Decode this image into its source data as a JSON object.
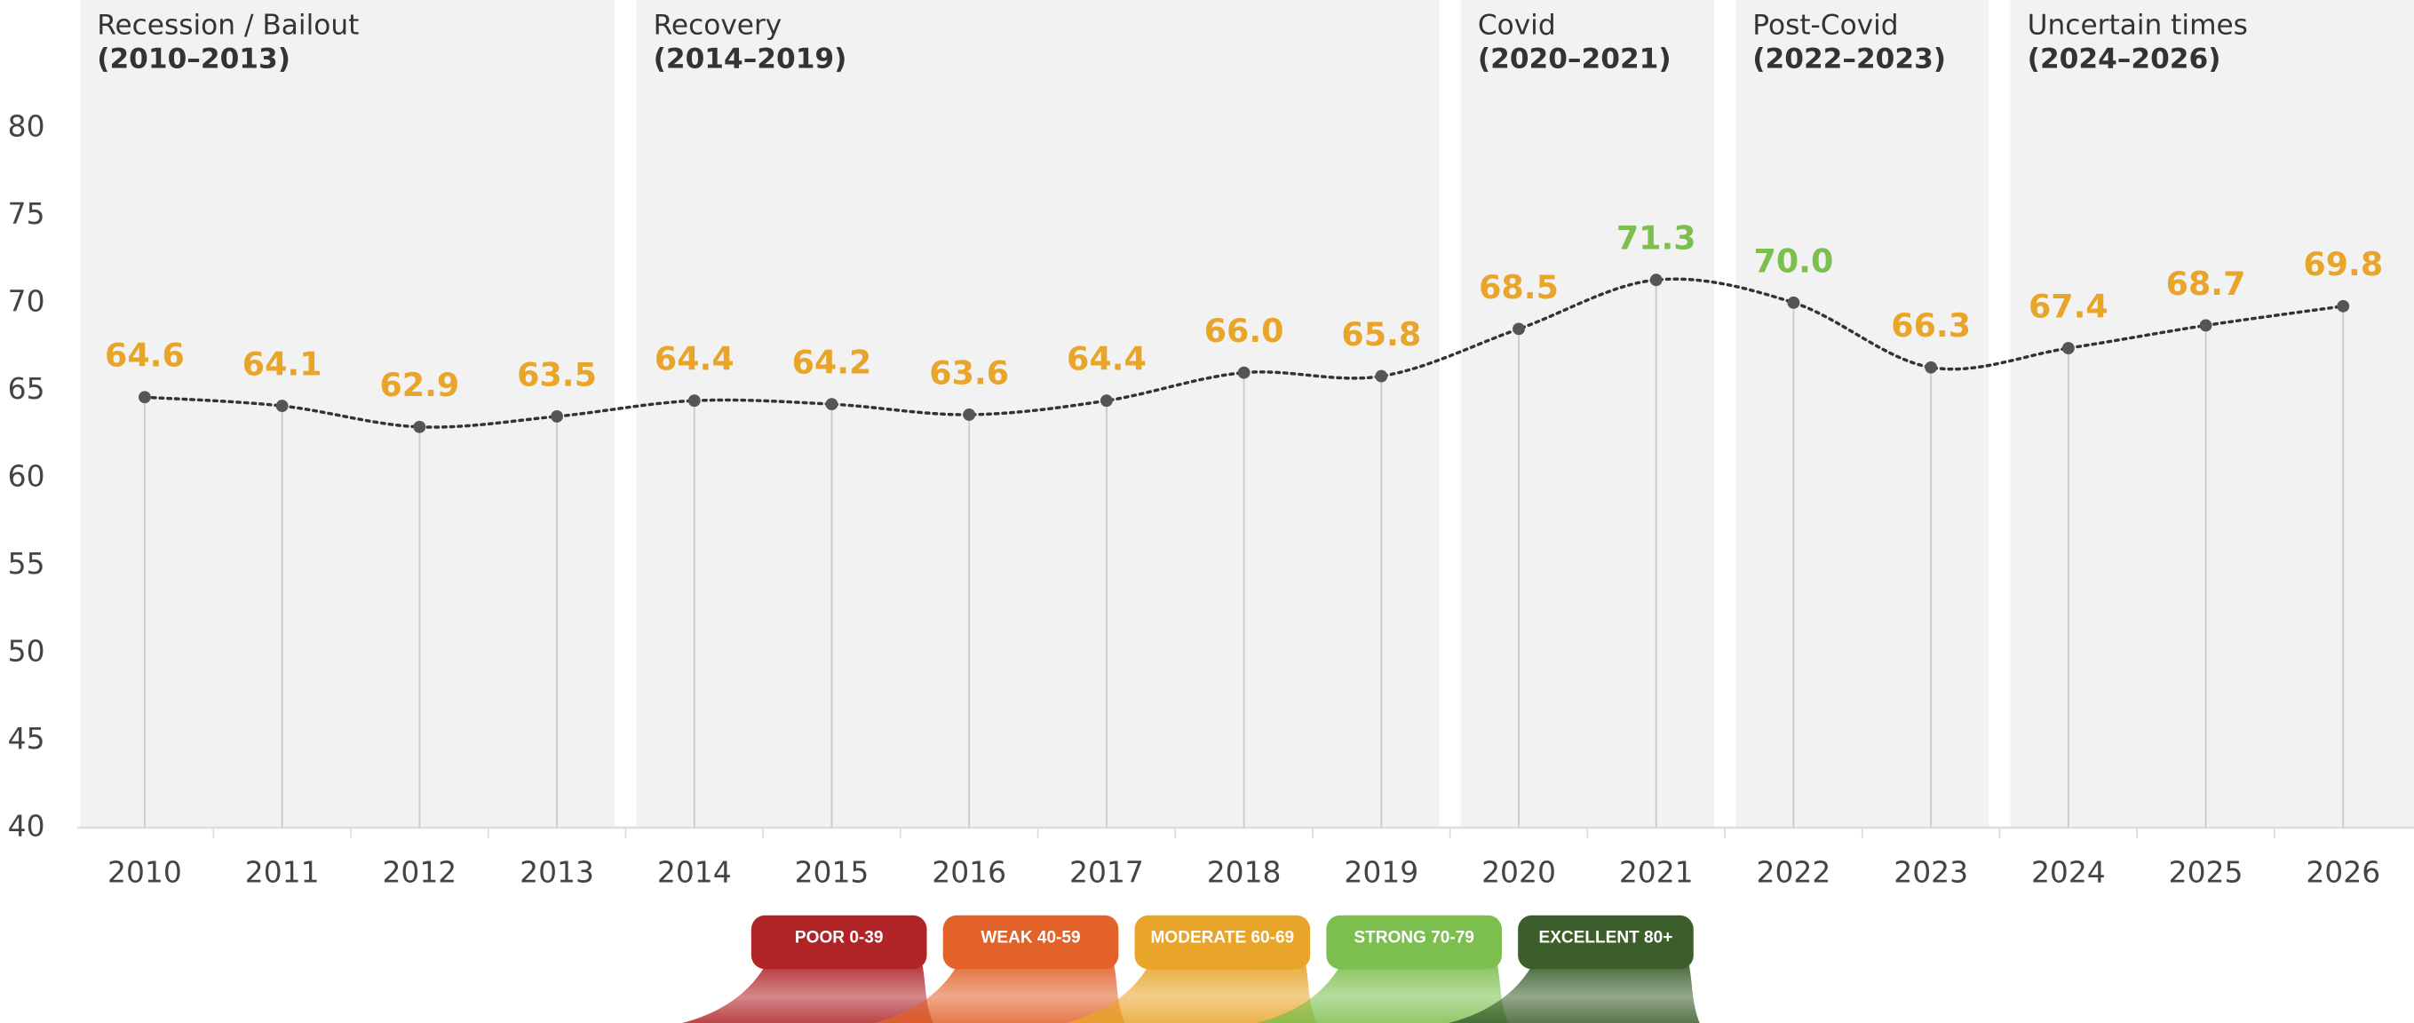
{
  "chart_data": {
    "type": "line",
    "categories": [
      "2010",
      "2011",
      "2012",
      "2013",
      "2014",
      "2015",
      "2016",
      "2017",
      "2018",
      "2019",
      "2020",
      "2021",
      "2022",
      "2023",
      "2024",
      "2025",
      "2026"
    ],
    "values": [
      64.6,
      64.1,
      62.9,
      63.5,
      64.4,
      64.2,
      63.6,
      64.4,
      66.0,
      65.8,
      68.5,
      71.3,
      70.0,
      66.3,
      67.4,
      68.7,
      69.8
    ],
    "value_labels": [
      "64.6",
      "64.1",
      "62.9",
      "63.5",
      "64.4",
      "64.2",
      "63.6",
      "64.4",
      "66.0",
      "65.8",
      "68.5",
      "71.3",
      "70.0",
      "66.3",
      "67.4",
      "68.7",
      "69.8"
    ],
    "color": "#333333",
    "ylim": [
      40,
      80
    ],
    "yticks": [
      40,
      45,
      50,
      55,
      60,
      65,
      70,
      75,
      80
    ],
    "periods": [
      {
        "label": "Recession / Bailout",
        "range": "(2010–2013)"
      },
      {
        "label": "Recovery",
        "range": "(2014–2019)"
      },
      {
        "label": "Covid",
        "range": "(2020–2021)"
      },
      {
        "label": "Post-Covid",
        "range": "(2022–2023)"
      },
      {
        "label": "Uncertain times",
        "range": "(2024–2026)"
      }
    ],
    "legend": [
      {
        "label": "POOR 0-39",
        "min": 0,
        "color": "#b02428"
      },
      {
        "label": "WEAK 40-59",
        "min": 40,
        "color": "#e2622a"
      },
      {
        "label": "MODERATE 60-69",
        "min": 60,
        "color": "#e8a52a"
      },
      {
        "label": "STRONG 70-79",
        "min": 70,
        "color": "#7cbf4f"
      },
      {
        "label": "EXCELLENT 80+",
        "min": 80,
        "color": "#3b5e2b"
      }
    ]
  }
}
